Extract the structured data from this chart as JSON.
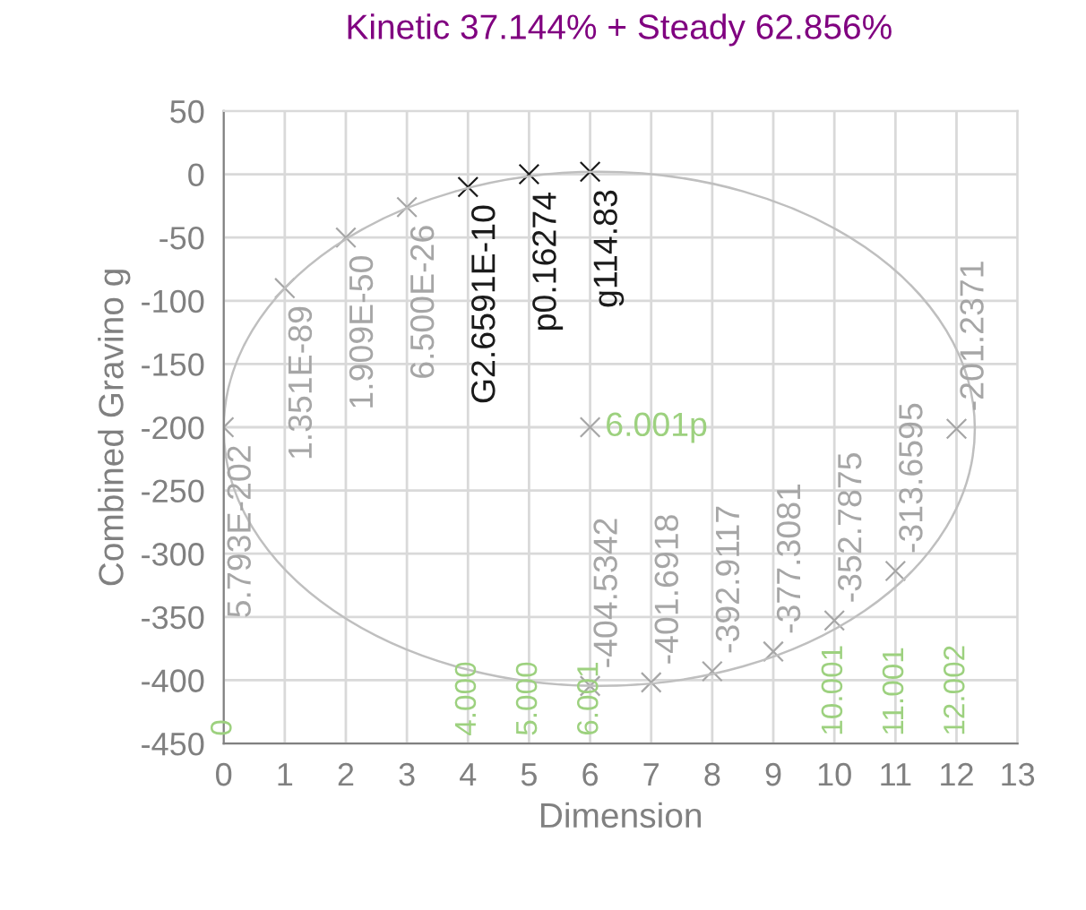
{
  "chart_data": {
    "type": "scatter",
    "title": "Kinetic 37.144% + Steady 62.856%",
    "xlabel": "Dimension",
    "ylabel": "Combined Gravino g",
    "xlim": [
      0,
      13
    ],
    "xticks": [
      0,
      1,
      2,
      3,
      4,
      5,
      6,
      7,
      8,
      9,
      10,
      11,
      12,
      13
    ],
    "ylim": [
      -450,
      50
    ],
    "yticks": [
      -450,
      -400,
      -350,
      -300,
      -250,
      -200,
      -150,
      -100,
      -50,
      0,
      50
    ],
    "grid": true,
    "annotations": [
      {
        "text": "5.793E-202",
        "x": 0,
        "y": -200
      },
      {
        "text": "1.351E-89",
        "x": 1,
        "y": -90
      },
      {
        "text": "1.909E-50",
        "x": 2,
        "y": -50
      },
      {
        "text": "6.500E-26",
        "x": 3,
        "y": -26
      },
      {
        "text": "G2.6591E-10",
        "x": 4,
        "y": -10
      },
      {
        "text": "p0.16274",
        "x": 5,
        "y": 0
      },
      {
        "text": "g114.83",
        "x": 6,
        "y": 2
      },
      {
        "text": "6.001p",
        "x": 6,
        "y": -200
      },
      "0",
      "4.000",
      "5.000",
      "6.001",
      "10.001",
      "11.001",
      "12.002"
    ],
    "series": [
      {
        "color": "#a6a6a6",
        "marker": "cross",
        "x": [
          0,
          1,
          2,
          3
        ],
        "values": [
          -200,
          -90,
          -50,
          -26
        ]
      },
      {
        "color": "#1a1a1a",
        "marker": "cross",
        "x": [
          4,
          5,
          6
        ],
        "values": [
          -10,
          0,
          2
        ]
      },
      {
        "color": "#a6a6a6",
        "marker": "cross",
        "x": [
          6,
          7,
          8,
          9,
          10,
          11,
          12
        ],
        "values": [
          -404.5342,
          -401.6918,
          -392.9117,
          -377.3081,
          -352.7875,
          -313.6595,
          -201.2371
        ],
        "data_labels": true
      },
      {
        "color": "#a6a6a6",
        "marker": "cross",
        "x": [
          6
        ],
        "values": [
          -200
        ]
      }
    ]
  }
}
